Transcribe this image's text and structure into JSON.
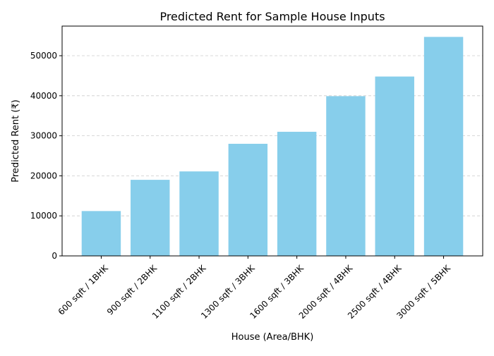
{
  "chart_data": {
    "type": "bar",
    "title": "Predicted Rent for Sample House Inputs",
    "xlabel": "House (Area/BHK)",
    "ylabel": "Predicted Rent (₹)",
    "categories": [
      "600 sqft / 1BHK",
      "900 sqft / 2BHK",
      "1100 sqft / 2BHK",
      "1300 sqft / 3BHK",
      "1600 sqft / 3BHK",
      "2000 sqft / 4BHK",
      "2500 sqft / 4BHK",
      "3000 sqft / 5BHK"
    ],
    "values": [
      11200,
      19000,
      21100,
      28000,
      31000,
      39900,
      44800,
      54700
    ],
    "ylim": [
      0,
      57400
    ],
    "yticks": [
      0,
      10000,
      20000,
      30000,
      40000,
      50000
    ],
    "grid": "y-dashed",
    "bar_color": "#87CEEB",
    "grid_color": "#cccccc"
  }
}
